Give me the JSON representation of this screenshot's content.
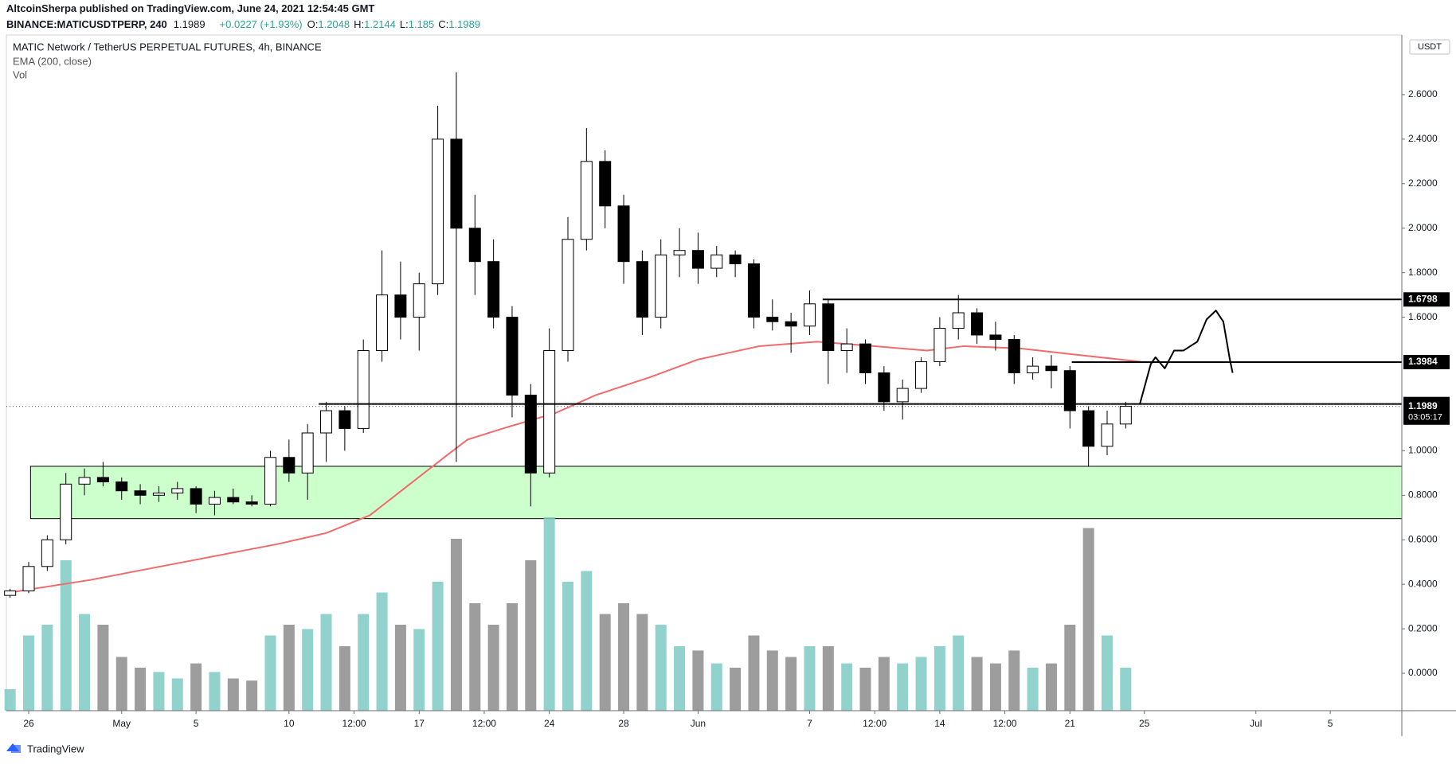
{
  "header": {
    "publisher": "AltcoinSherpa published on TradingView.com, June 24, 2021 12:54:45 GMT",
    "symbol": "BINANCE:MATICUSDTPERP, 240",
    "last": 1.1989,
    "change": "+0.0227 (+1.93%)",
    "ohlc": [
      {
        "label": "O:",
        "value": 1.2048
      },
      {
        "label": "H:",
        "value": 1.2144
      },
      {
        "label": "L:",
        "value": 1.185
      },
      {
        "label": "C:",
        "value": 1.1989
      }
    ]
  },
  "footer": {
    "brand": "TradingView"
  },
  "chart_data": {
    "type": "candlestick",
    "title": "MATIC Network / TetherUS PERPETUAL FUTURES, 4h, BINANCE",
    "indicators": [
      "EMA (200, close)",
      "Vol"
    ],
    "currency": "USDT",
    "x": [
      -1,
      0,
      1,
      2,
      3,
      4,
      5,
      6,
      7,
      8,
      9,
      10,
      11,
      12,
      13,
      14,
      15,
      16,
      17,
      18,
      19,
      20,
      21,
      22,
      23,
      24,
      25,
      26,
      27,
      28,
      29,
      30,
      31,
      32,
      33,
      34,
      35,
      36,
      37,
      38,
      39,
      40,
      41,
      42,
      43,
      44,
      45,
      46,
      47,
      48,
      49,
      50,
      51,
      52,
      53,
      54,
      55,
      56,
      57,
      58,
      59
    ],
    "open": [
      0.35,
      0.37,
      0.48,
      0.6,
      0.85,
      0.88,
      0.86,
      0.82,
      0.8,
      0.81,
      0.83,
      0.76,
      0.79,
      0.77,
      0.76,
      0.97,
      0.9,
      1.08,
      1.18,
      1.1,
      1.45,
      1.7,
      1.6,
      1.75,
      2.4,
      2.0,
      1.85,
      1.6,
      1.25,
      0.9,
      1.45,
      1.95,
      2.3,
      2.1,
      1.85,
      1.6,
      1.88,
      1.9,
      1.82,
      1.88,
      1.84,
      1.6,
      1.58,
      1.56,
      1.66,
      1.45,
      1.48,
      1.35,
      1.22,
      1.28,
      1.4,
      1.55,
      1.62,
      1.52,
      1.5,
      1.35,
      1.38,
      1.36,
      1.18,
      1.02,
      1.12
    ],
    "high": [
      0.38,
      0.5,
      0.62,
      0.9,
      0.92,
      0.95,
      0.88,
      0.85,
      0.84,
      0.86,
      0.84,
      0.82,
      0.83,
      0.8,
      1.0,
      1.05,
      1.12,
      1.22,
      1.2,
      1.5,
      1.9,
      1.85,
      1.8,
      2.55,
      2.7,
      2.15,
      1.95,
      1.65,
      1.3,
      1.55,
      2.05,
      2.45,
      2.35,
      2.15,
      1.9,
      1.95,
      2.0,
      1.98,
      1.92,
      1.9,
      1.86,
      1.68,
      1.62,
      1.72,
      1.68,
      1.55,
      1.5,
      1.38,
      1.32,
      1.42,
      1.6,
      1.7,
      1.64,
      1.58,
      1.52,
      1.42,
      1.43,
      1.38,
      1.2,
      1.18,
      1.22
    ],
    "low": [
      0.34,
      0.36,
      0.46,
      0.58,
      0.8,
      0.84,
      0.78,
      0.76,
      0.77,
      0.78,
      0.72,
      0.71,
      0.76,
      0.75,
      0.75,
      0.86,
      0.78,
      0.95,
      1.0,
      1.08,
      1.4,
      1.5,
      1.45,
      1.7,
      0.95,
      1.7,
      1.55,
      1.15,
      0.75,
      0.88,
      1.4,
      1.9,
      2.0,
      1.75,
      1.52,
      1.55,
      1.78,
      1.75,
      1.78,
      1.78,
      1.55,
      1.54,
      1.44,
      1.52,
      1.3,
      1.35,
      1.3,
      1.18,
      1.14,
      1.26,
      1.38,
      1.5,
      1.48,
      1.45,
      1.3,
      1.32,
      1.28,
      1.1,
      0.93,
      0.98,
      1.1
    ],
    "close": [
      0.37,
      0.48,
      0.6,
      0.85,
      0.88,
      0.86,
      0.82,
      0.8,
      0.81,
      0.83,
      0.76,
      0.79,
      0.77,
      0.76,
      0.97,
      0.9,
      1.08,
      1.18,
      1.1,
      1.45,
      1.7,
      1.6,
      1.75,
      2.4,
      2.0,
      1.85,
      1.6,
      1.25,
      0.9,
      1.45,
      1.95,
      2.3,
      2.1,
      1.85,
      1.6,
      1.88,
      1.9,
      1.82,
      1.88,
      1.84,
      1.6,
      1.58,
      1.56,
      1.66,
      1.45,
      1.48,
      1.35,
      1.22,
      1.28,
      1.4,
      1.55,
      1.62,
      1.52,
      1.5,
      1.35,
      1.38,
      1.36,
      1.18,
      1.02,
      1.12,
      1.2
    ],
    "volume": [
      10,
      35,
      40,
      70,
      45,
      40,
      25,
      20,
      18,
      15,
      22,
      18,
      15,
      14,
      35,
      40,
      38,
      45,
      30,
      45,
      55,
      40,
      38,
      60,
      80,
      50,
      40,
      50,
      70,
      90,
      60,
      65,
      45,
      50,
      45,
      40,
      30,
      28,
      22,
      20,
      35,
      28,
      25,
      30,
      30,
      22,
      20,
      25,
      22,
      25,
      30,
      35,
      25,
      22,
      28,
      20,
      22,
      40,
      85,
      35,
      20
    ],
    "volume_lim": [
      0,
      100
    ],
    "up_color": "#ffffff",
    "down_color": "#000000",
    "candle_border": "#000000",
    "volume_up_color": "#7fcac3",
    "volume_down_color": "#8c8c8c",
    "ema": {
      "color": "#f06b6b",
      "x": [
        -1.25,
        3.35,
        8.35,
        13.35,
        16,
        18.35,
        20.5,
        22.5,
        23.6,
        25.5,
        28.35,
        30.5,
        33.4,
        36,
        39.3,
        42.4,
        45.5,
        48.3,
        50.3,
        53.3,
        56.5,
        59.8
      ],
      "values": [
        0.36,
        0.42,
        0.5,
        0.58,
        0.63,
        0.71,
        0.85,
        0.98,
        1.05,
        1.1,
        1.17,
        1.25,
        1.33,
        1.41,
        1.47,
        1.49,
        1.47,
        1.45,
        1.47,
        1.46,
        1.43,
        1.4
      ]
    },
    "zone": {
      "low": 0.695,
      "high": 0.93,
      "from": 0.1,
      "color": "#ccffcc"
    },
    "levels": [
      {
        "value": 1.6798,
        "from": 42.7
      },
      {
        "value": 1.3984,
        "from": 56.1
      },
      {
        "value": 1.2099,
        "from": 15.6
      }
    ],
    "current": {
      "value": 1.1989,
      "countdown": "03:05:17"
    },
    "projection": {
      "x": [
        59.75,
        60.35,
        60.6,
        61.1,
        61.6,
        62.1,
        62.85,
        63.35,
        63.85,
        64.25,
        64.6,
        64.75
      ],
      "values": [
        1.207,
        1.39,
        1.42,
        1.37,
        1.45,
        1.45,
        1.49,
        1.59,
        1.63,
        1.58,
        1.41,
        1.35
      ]
    },
    "xlim": [
      -1.2,
      73.85
    ],
    "ylim": [
      -0.168,
      2.868
    ],
    "xticks": [
      {
        "value": 0,
        "label": "26"
      },
      {
        "value": 5,
        "label": "May"
      },
      {
        "value": 9,
        "label": "5"
      },
      {
        "value": 14,
        "label": "10"
      },
      {
        "value": 17.5,
        "label": "12:00"
      },
      {
        "value": 21,
        "label": "17"
      },
      {
        "value": 24.5,
        "label": "12:00"
      },
      {
        "value": 28,
        "label": "24"
      },
      {
        "value": 32,
        "label": "28"
      },
      {
        "value": 36,
        "label": "Jun"
      },
      {
        "value": 42,
        "label": "7"
      },
      {
        "value": 45.5,
        "label": "12:00"
      },
      {
        "value": 49,
        "label": "14"
      },
      {
        "value": 52.5,
        "label": "12:00"
      },
      {
        "value": 56,
        "label": "21"
      },
      {
        "value": 60,
        "label": "25"
      },
      {
        "value": 66,
        "label": "Jul"
      },
      {
        "value": 70,
        "label": "5"
      }
    ],
    "yticks": [
      {
        "value": 2.6,
        "label": "2.6000"
      },
      {
        "value": 2.4,
        "label": "2.4000"
      },
      {
        "value": 2.2,
        "label": "2.2000"
      },
      {
        "value": 2.0,
        "label": "2.0000"
      },
      {
        "value": 1.8,
        "label": "1.8000"
      },
      {
        "value": 1.6,
        "label": "1.6000"
      },
      {
        "value": 1.0,
        "label": "1.0000"
      },
      {
        "value": 0.8,
        "label": "0.8000"
      },
      {
        "value": 0.6,
        "label": "0.6000"
      },
      {
        "value": 0.4,
        "label": "0.4000"
      },
      {
        "value": 0.2,
        "label": "0.2000"
      },
      {
        "value": 0.0,
        "label": "0.0000"
      }
    ]
  }
}
